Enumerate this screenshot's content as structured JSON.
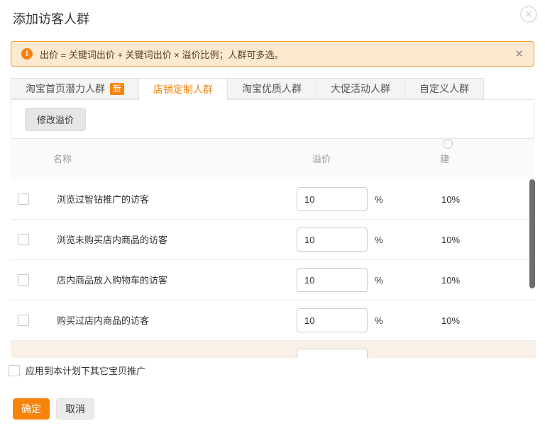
{
  "modal": {
    "title": "添加访客人群",
    "close_glyph": "✕"
  },
  "banner": {
    "icon_glyph": "!",
    "text": "出价 = 关键词出价 + 关键词出价 × 溢价比例；人群可多选。",
    "close_glyph": "✕"
  },
  "tabs": [
    {
      "label": "淘宝首页潜力人群",
      "badge": "新",
      "active": false
    },
    {
      "label": "店铺定制人群",
      "active": true
    },
    {
      "label": "淘宝优质人群",
      "active": false
    },
    {
      "label": "大促活动人群",
      "active": false
    },
    {
      "label": "自定义人群",
      "active": false
    }
  ],
  "toolbar": {
    "modify_premium_label": "修改溢价"
  },
  "table": {
    "headers": {
      "name": "名称",
      "premium": "溢价",
      "suggested": "建议溢价",
      "help_glyph": "?"
    },
    "percent_sign": "%",
    "rows": [
      {
        "name": "浏览过智钻推广的访客",
        "premium_value": "10",
        "suggested": "10%"
      },
      {
        "name": "浏览未购买店内商品的访客",
        "premium_value": "10",
        "suggested": "10%"
      },
      {
        "name": "店内商品放入购物车的访客",
        "premium_value": "10",
        "suggested": "10%"
      },
      {
        "name": "购买过店内商品的访客",
        "premium_value": "10",
        "suggested": "10%"
      }
    ]
  },
  "footer": {
    "apply_label": "应用到本计划下其它宝贝推广",
    "confirm_label": "确定",
    "cancel_label": "取消"
  },
  "colors": {
    "accent_orange": "#f7830d",
    "banner_bg": "#fbe9d0",
    "banner_border": "#f19d38",
    "hover_row_bg": "#f9f0e7",
    "table_header_bg": "#fafafa",
    "scrollbar_thumb": "#6e6e6e"
  }
}
